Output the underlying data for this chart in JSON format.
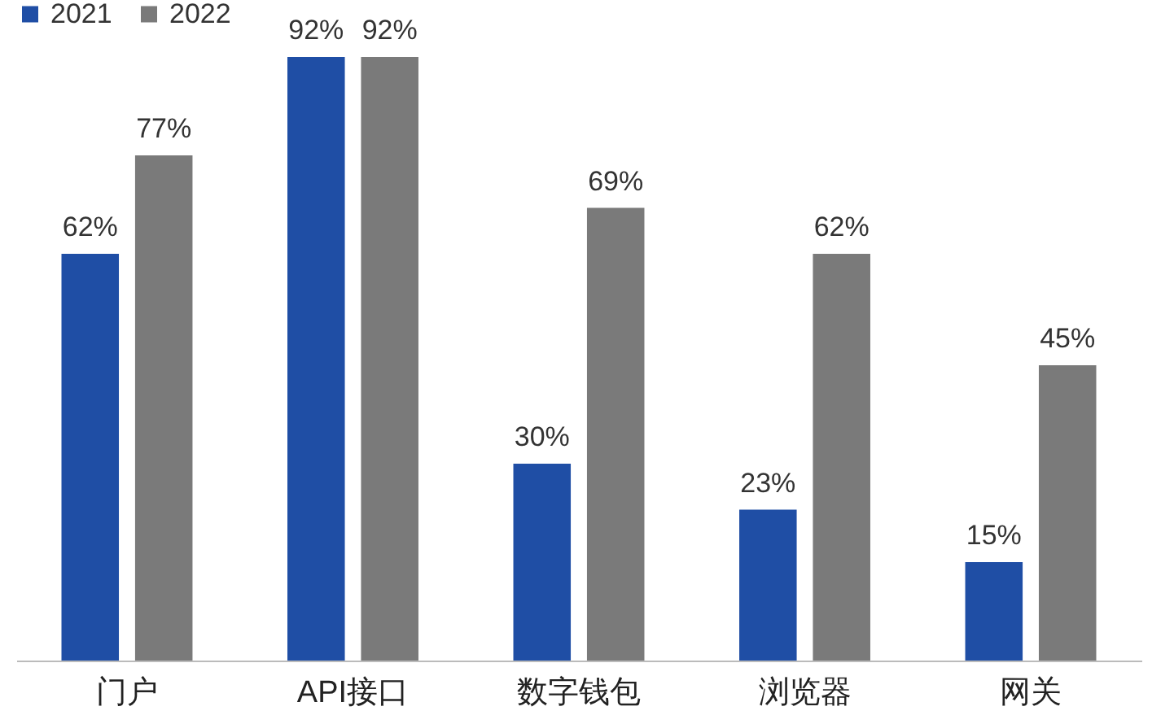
{
  "chart_data": {
    "type": "bar",
    "categories": [
      "门户",
      "API接口",
      "数字钱包",
      "浏览器",
      "网关"
    ],
    "legend": "top",
    "series": [
      {
        "name": "2021",
        "color": "#1f4ea5",
        "values": [
          62,
          92,
          30,
          23,
          15
        ],
        "value_labels": [
          "62%",
          "92%",
          "30%",
          "23%",
          "15%"
        ]
      },
      {
        "name": "2022",
        "color": "#7a7a7a",
        "values": [
          77,
          92,
          69,
          62,
          45
        ],
        "value_labels": [
          "77%",
          "92%",
          "69%",
          "62%",
          "45%"
        ]
      }
    ]
  }
}
